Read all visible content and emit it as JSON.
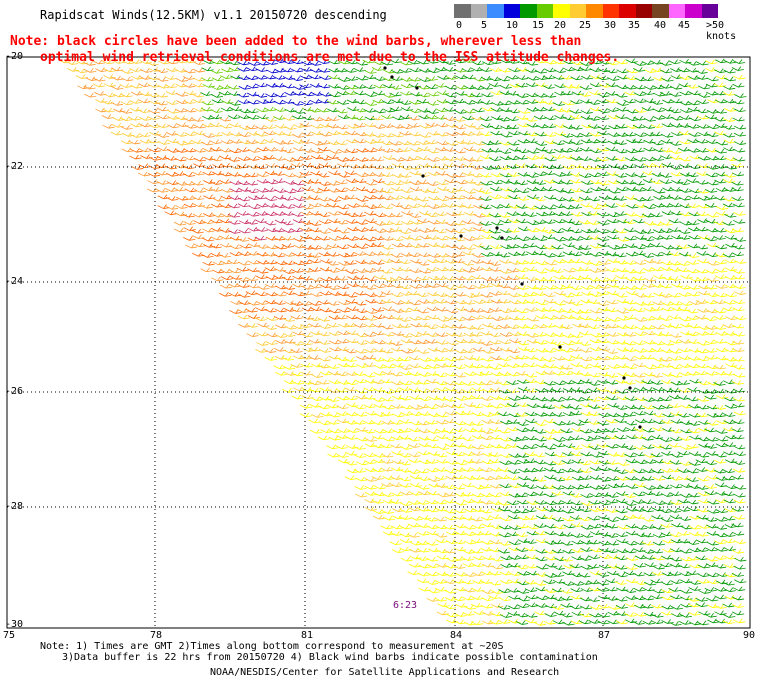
{
  "title": "Rapidscat Winds(12.5KM) v1.1 20150720 descending",
  "note": {
    "line1": "Note: black circles have been added to the wind barbs, wherever less than",
    "line2": "optimal wind retrieval conditions are met due to the ISS attitude changes."
  },
  "color_scale": {
    "unit_label": "knots",
    "labels": [
      "0",
      "5",
      "10",
      "15",
      "20",
      "25",
      "30",
      "35",
      "40",
      "45",
      ">50 knots"
    ],
    "colors": [
      "#707070",
      "#b0b0b0",
      "#3a8cff",
      "#0000dd",
      "#009900",
      "#66cc00",
      "#ffff00",
      "#ffcc33",
      "#ff8800",
      "#ff3300",
      "#dd0000",
      "#990000",
      "#774422",
      "#ff66ff",
      "#cc00cc",
      "#660099"
    ]
  },
  "axes": {
    "lat_labels": [
      "-20",
      "-22",
      "-24",
      "-26",
      "-28",
      "-30"
    ],
    "lon_labels": [
      "75",
      "78",
      "81",
      "84",
      "87",
      "90"
    ]
  },
  "timestamp": "6:23",
  "footnotes": {
    "line1": "Note: 1) Times are GMT 2)Times along bottom correspond to measurement at ~20S",
    "line2": "3)Data buffer is 22 hrs from 20150720 4) Black wind barbs indicate possible contamination",
    "line3": "NOAA/NESDIS/Center for Satellite Applications and Research"
  }
}
